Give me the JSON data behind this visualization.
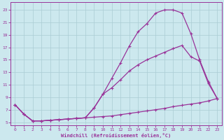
{
  "xlabel": "Windchill (Refroidissement éolien,°C)",
  "background_color": "#cce8ee",
  "grid_color": "#aaccd4",
  "line_color": "#993399",
  "xlim": [
    -0.5,
    23.5
  ],
  "ylim": [
    4.5,
    24.2
  ],
  "xticks": [
    0,
    1,
    2,
    3,
    4,
    5,
    6,
    7,
    8,
    9,
    10,
    11,
    12,
    13,
    14,
    15,
    16,
    17,
    18,
    19,
    20,
    21,
    22,
    23
  ],
  "yticks": [
    5,
    7,
    9,
    11,
    13,
    15,
    17,
    19,
    21,
    23
  ],
  "curve_upper_x": [
    0,
    1,
    2,
    3,
    4,
    5,
    6,
    7,
    8,
    9,
    10,
    11,
    12,
    13,
    14,
    15,
    16,
    17,
    18,
    19,
    20,
    21,
    22,
    23
  ],
  "curve_upper_y": [
    7.8,
    6.3,
    5.2,
    5.2,
    5.3,
    5.4,
    5.5,
    5.6,
    5.7,
    7.3,
    9.5,
    12.0,
    14.5,
    17.2,
    19.5,
    20.8,
    22.5,
    23.0,
    23.0,
    22.5,
    19.2,
    15.0,
    11.5,
    8.8
  ],
  "curve_mid_x": [
    0,
    1,
    2,
    3,
    4,
    5,
    6,
    7,
    8,
    9,
    10,
    11,
    12,
    13,
    14,
    15,
    16,
    17,
    18,
    19,
    20,
    21,
    22,
    23
  ],
  "curve_mid_y": [
    7.8,
    6.3,
    5.2,
    5.2,
    5.3,
    5.4,
    5.5,
    5.6,
    5.7,
    7.3,
    9.5,
    10.5,
    11.8,
    13.2,
    14.2,
    15.0,
    15.6,
    16.2,
    16.8,
    17.3,
    15.5,
    14.8,
    11.2,
    8.8
  ],
  "curve_low_x": [
    0,
    1,
    2,
    3,
    4,
    5,
    6,
    7,
    8,
    9,
    10,
    11,
    12,
    13,
    14,
    15,
    16,
    17,
    18,
    19,
    20,
    21,
    22,
    23
  ],
  "curve_low_y": [
    7.8,
    6.3,
    5.2,
    5.2,
    5.3,
    5.4,
    5.5,
    5.6,
    5.7,
    5.8,
    5.9,
    6.0,
    6.2,
    6.4,
    6.6,
    6.8,
    7.0,
    7.2,
    7.5,
    7.7,
    7.9,
    8.1,
    8.4,
    8.8
  ]
}
